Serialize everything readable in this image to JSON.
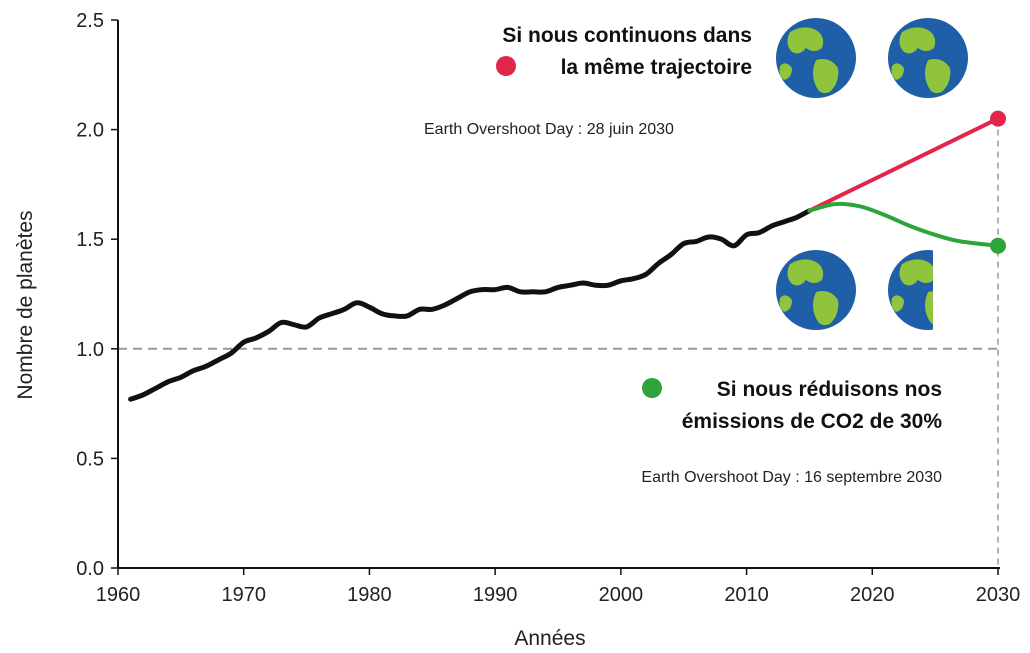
{
  "chart_data": {
    "type": "line",
    "xlabel": "Années",
    "ylabel": "Nombre de planètes",
    "xlim": [
      1960,
      2030
    ],
    "ylim": [
      0,
      2.5
    ],
    "x_ticks": [
      "1960",
      "1970",
      "1980",
      "1990",
      "2000",
      "2010",
      "2020",
      "2030"
    ],
    "y_ticks": [
      "0.0",
      "0.5",
      "1.0",
      "1.5",
      "2.0",
      "2.5"
    ],
    "reference_line_y": 1.0,
    "reference_line_x": 2030,
    "grid": false,
    "series": [
      {
        "color": "#111111",
        "x": [
          1961,
          1962,
          1963,
          1964,
          1965,
          1966,
          1967,
          1968,
          1969,
          1970,
          1971,
          1972,
          1973,
          1974,
          1975,
          1976,
          1977,
          1978,
          1979,
          1980,
          1981,
          1982,
          1983,
          1984,
          1985,
          1986,
          1987,
          1988,
          1989,
          1990,
          1991,
          1992,
          1993,
          1994,
          1995,
          1996,
          1997,
          1998,
          1999,
          2000,
          2001,
          2002,
          2003,
          2004,
          2005,
          2006,
          2007,
          2008,
          2009,
          2010,
          2011,
          2012,
          2013,
          2014,
          2015
        ],
        "y": [
          0.77,
          0.79,
          0.82,
          0.85,
          0.87,
          0.9,
          0.92,
          0.95,
          0.98,
          1.03,
          1.05,
          1.08,
          1.12,
          1.11,
          1.1,
          1.14,
          1.16,
          1.18,
          1.21,
          1.19,
          1.16,
          1.15,
          1.15,
          1.18,
          1.18,
          1.2,
          1.23,
          1.26,
          1.27,
          1.27,
          1.28,
          1.26,
          1.26,
          1.26,
          1.28,
          1.29,
          1.3,
          1.29,
          1.29,
          1.31,
          1.32,
          1.34,
          1.39,
          1.43,
          1.48,
          1.49,
          1.51,
          1.5,
          1.47,
          1.52,
          1.53,
          1.56,
          1.58,
          1.6,
          1.63
        ]
      },
      {
        "name": "Si nous continuons dans la même trajectoire",
        "color": "#e0264a",
        "x": [
          2015,
          2020,
          2025,
          2030
        ],
        "y": [
          1.63,
          1.77,
          1.91,
          2.05
        ]
      },
      {
        "name": "Si nous réduisons nos émissions de CO2 de 30%",
        "color": "#2ea43a",
        "x": [
          2015,
          2017,
          2019,
          2021,
          2023,
          2025,
          2027,
          2030
        ],
        "y": [
          1.63,
          1.66,
          1.65,
          1.61,
          1.56,
          1.52,
          1.49,
          1.47
        ]
      }
    ],
    "endpoints": [
      {
        "x": 2030,
        "y": 2.05,
        "color": "#e0264a"
      },
      {
        "x": 2030,
        "y": 1.47,
        "color": "#2ea43a"
      }
    ],
    "annotations": {
      "red_line1": "Si nous continuons dans",
      "red_line2": "la même trajectoire",
      "red_date": "Earth Overshoot Day : 28 juin 2030",
      "green_line1": "Si nous réduisons nos",
      "green_line2": "émissions de CO2 de 30%",
      "green_date": "Earth Overshoot Day : 16 septembre 2030"
    },
    "globe_colors": {
      "ocean": "#1f5fa8",
      "land": "#8fc43c"
    }
  }
}
